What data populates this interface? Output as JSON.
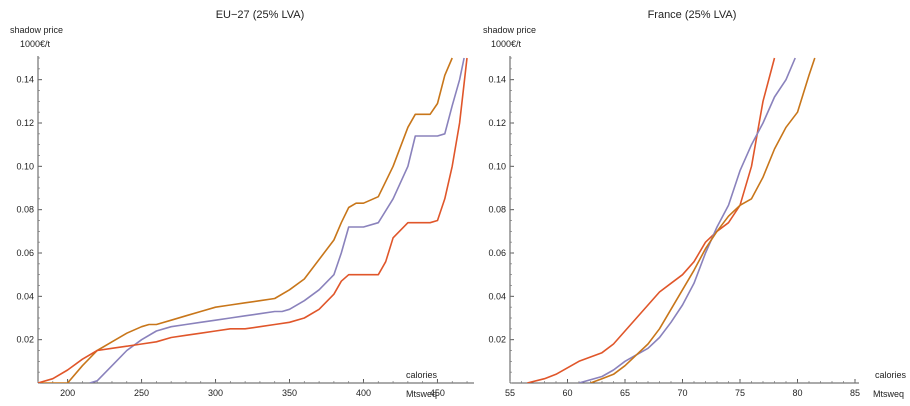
{
  "chart_data": [
    {
      "type": "line",
      "title": "EU−27 (25% LVA)",
      "ylabel": "shadow price",
      "yunit": "1000€/t",
      "xlabel": "calories",
      "xunit": "Mtsweq",
      "xlim": [
        180,
        472
      ],
      "ylim": [
        0,
        0.15
      ],
      "xticks": [
        "200",
        "250",
        "300",
        "350",
        "400",
        "450"
      ],
      "yticks": [
        "0.02",
        "0.04",
        "0.06",
        "0.08",
        "0.10",
        "0.12",
        "0.14"
      ],
      "series": [
        {
          "color": "#c8761a",
          "x": [
            180,
            190,
            200,
            210,
            220,
            230,
            240,
            250,
            255,
            260,
            270,
            280,
            290,
            300,
            310,
            320,
            330,
            340,
            350,
            360,
            370,
            380,
            385,
            390,
            395,
            400,
            410,
            420,
            430,
            435,
            440,
            445,
            450,
            455,
            460
          ],
          "y": [
            0,
            0,
            0,
            0.008,
            0.015,
            0.019,
            0.023,
            0.026,
            0.027,
            0.027,
            0.029,
            0.031,
            0.033,
            0.035,
            0.036,
            0.037,
            0.038,
            0.039,
            0.043,
            0.048,
            0.057,
            0.066,
            0.074,
            0.081,
            0.083,
            0.083,
            0.086,
            0.1,
            0.118,
            0.124,
            0.124,
            0.124,
            0.129,
            0.142,
            0.15
          ]
        },
        {
          "color": "#8a82bc",
          "x": [
            215,
            220,
            230,
            240,
            250,
            260,
            270,
            280,
            290,
            300,
            310,
            320,
            330,
            340,
            345,
            350,
            360,
            370,
            380,
            385,
            390,
            400,
            410,
            420,
            430,
            435,
            440,
            450,
            455,
            460,
            465,
            468
          ],
          "y": [
            0,
            0.001,
            0.008,
            0.015,
            0.02,
            0.024,
            0.026,
            0.027,
            0.028,
            0.029,
            0.03,
            0.031,
            0.032,
            0.033,
            0.033,
            0.034,
            0.038,
            0.043,
            0.05,
            0.06,
            0.072,
            0.072,
            0.074,
            0.085,
            0.1,
            0.114,
            0.114,
            0.114,
            0.115,
            0.128,
            0.14,
            0.15
          ]
        },
        {
          "color": "#e0562a",
          "x": [
            180,
            190,
            200,
            210,
            220,
            230,
            240,
            250,
            260,
            270,
            280,
            290,
            300,
            310,
            320,
            330,
            340,
            350,
            360,
            370,
            380,
            385,
            390,
            400,
            410,
            415,
            420,
            430,
            440,
            445,
            450,
            455,
            460,
            465,
            470
          ],
          "y": [
            0,
            0.002,
            0.006,
            0.011,
            0.015,
            0.016,
            0.017,
            0.018,
            0.019,
            0.021,
            0.022,
            0.023,
            0.024,
            0.025,
            0.025,
            0.026,
            0.027,
            0.028,
            0.03,
            0.034,
            0.041,
            0.047,
            0.05,
            0.05,
            0.05,
            0.056,
            0.067,
            0.074,
            0.074,
            0.074,
            0.075,
            0.085,
            0.1,
            0.12,
            0.15
          ]
        }
      ]
    },
    {
      "type": "line",
      "title": "France (25% LVA)",
      "ylabel": "shadow price",
      "yunit": "1000€/t",
      "xlabel": "calories",
      "xunit": "Mtsweq",
      "xlim": [
        55,
        85
      ],
      "ylim": [
        0,
        0.15
      ],
      "xticks": [
        "55",
        "60",
        "65",
        "70",
        "75",
        "80",
        "85"
      ],
      "yticks": [
        "0.02",
        "0.04",
        "0.06",
        "0.08",
        "0.10",
        "0.12",
        "0.14"
      ],
      "series": [
        {
          "color": "#e0562a",
          "x": [
            56.5,
            58,
            59,
            60,
            61,
            62,
            63,
            64,
            65,
            66,
            67,
            68,
            69,
            70,
            71,
            72,
            73,
            74,
            75,
            76,
            77,
            78
          ],
          "y": [
            0,
            0.002,
            0.004,
            0.007,
            0.01,
            0.012,
            0.014,
            0.018,
            0.024,
            0.03,
            0.036,
            0.042,
            0.046,
            0.05,
            0.056,
            0.065,
            0.07,
            0.074,
            0.082,
            0.1,
            0.13,
            0.15
          ]
        },
        {
          "color": "#8a82bc",
          "x": [
            61,
            63,
            64,
            65,
            66,
            67,
            68,
            69,
            70,
            71,
            72,
            73,
            74,
            75,
            76,
            77,
            78,
            79,
            79.8
          ],
          "y": [
            0,
            0.003,
            0.006,
            0.01,
            0.013,
            0.016,
            0.021,
            0.028,
            0.036,
            0.046,
            0.06,
            0.072,
            0.082,
            0.098,
            0.11,
            0.12,
            0.132,
            0.14,
            0.15
          ]
        },
        {
          "color": "#c8761a",
          "x": [
            62,
            63,
            64,
            65,
            66,
            67,
            68,
            69,
            70,
            71,
            72,
            73,
            74,
            75,
            76,
            77,
            78,
            79,
            80,
            81,
            81.5
          ],
          "y": [
            0,
            0.002,
            0.004,
            0.008,
            0.013,
            0.018,
            0.025,
            0.034,
            0.043,
            0.052,
            0.062,
            0.07,
            0.077,
            0.082,
            0.085,
            0.095,
            0.108,
            0.118,
            0.125,
            0.142,
            0.15
          ]
        }
      ]
    }
  ]
}
